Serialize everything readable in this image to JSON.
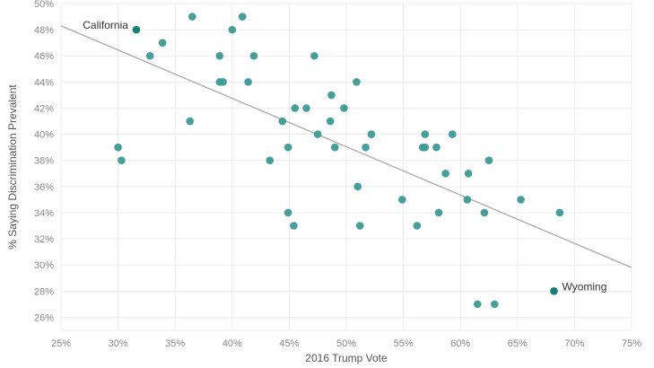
{
  "chart_data": {
    "type": "scatter",
    "xlabel": "2016 Trump Vote",
    "ylabel": "% Saying Discrimination Prevalent",
    "xlim": [
      25,
      75
    ],
    "ylim": [
      25,
      50
    ],
    "x_ticks": [
      "25%",
      "30%",
      "35%",
      "40%",
      "45%",
      "50%",
      "55%",
      "60%",
      "65%",
      "70%",
      "75%"
    ],
    "y_ticks": [
      "26%",
      "28%",
      "30%",
      "32%",
      "34%",
      "36%",
      "38%",
      "40%",
      "42%",
      "44%",
      "46%",
      "48%",
      "50%"
    ],
    "grid": true,
    "colors": {
      "point": "#3d9a94",
      "highlight": "#157f78",
      "trend": "#aaaaaa",
      "grid": "#ececec"
    },
    "points": [
      {
        "x": 30.0,
        "y": 39
      },
      {
        "x": 30.3,
        "y": 38
      },
      {
        "x": 32.8,
        "y": 46
      },
      {
        "x": 33.9,
        "y": 47
      },
      {
        "x": 36.3,
        "y": 41
      },
      {
        "x": 36.5,
        "y": 49
      },
      {
        "x": 38.9,
        "y": 46
      },
      {
        "x": 38.9,
        "y": 44
      },
      {
        "x": 39.2,
        "y": 44
      },
      {
        "x": 40.0,
        "y": 48
      },
      {
        "x": 40.9,
        "y": 49
      },
      {
        "x": 41.4,
        "y": 44
      },
      {
        "x": 41.9,
        "y": 46
      },
      {
        "x": 43.3,
        "y": 38
      },
      {
        "x": 44.4,
        "y": 41
      },
      {
        "x": 44.9,
        "y": 39
      },
      {
        "x": 44.9,
        "y": 34
      },
      {
        "x": 45.4,
        "y": 33
      },
      {
        "x": 45.5,
        "y": 42
      },
      {
        "x": 46.5,
        "y": 42
      },
      {
        "x": 47.2,
        "y": 46
      },
      {
        "x": 47.5,
        "y": 40
      },
      {
        "x": 48.6,
        "y": 41
      },
      {
        "x": 48.7,
        "y": 43
      },
      {
        "x": 49.0,
        "y": 39
      },
      {
        "x": 49.8,
        "y": 42
      },
      {
        "x": 50.9,
        "y": 44
      },
      {
        "x": 51.0,
        "y": 36
      },
      {
        "x": 51.2,
        "y": 33
      },
      {
        "x": 51.7,
        "y": 39
      },
      {
        "x": 52.2,
        "y": 40
      },
      {
        "x": 54.9,
        "y": 35
      },
      {
        "x": 56.2,
        "y": 33
      },
      {
        "x": 56.7,
        "y": 39
      },
      {
        "x": 56.9,
        "y": 39
      },
      {
        "x": 56.9,
        "y": 40
      },
      {
        "x": 57.9,
        "y": 39
      },
      {
        "x": 58.1,
        "y": 34
      },
      {
        "x": 58.7,
        "y": 37
      },
      {
        "x": 59.3,
        "y": 40
      },
      {
        "x": 60.6,
        "y": 35
      },
      {
        "x": 60.7,
        "y": 37
      },
      {
        "x": 61.5,
        "y": 27
      },
      {
        "x": 62.1,
        "y": 34
      },
      {
        "x": 62.5,
        "y": 38
      },
      {
        "x": 63.0,
        "y": 27
      },
      {
        "x": 65.3,
        "y": 35
      },
      {
        "x": 68.7,
        "y": 34
      }
    ],
    "highlighted": [
      {
        "label": "California",
        "x": 31.6,
        "y": 48,
        "label_side": "left"
      },
      {
        "label": "Wyoming",
        "x": 68.2,
        "y": 28,
        "label_side": "right"
      }
    ],
    "trendline": {
      "x": [
        25,
        75
      ],
      "y": [
        48.3,
        29.8
      ]
    }
  }
}
